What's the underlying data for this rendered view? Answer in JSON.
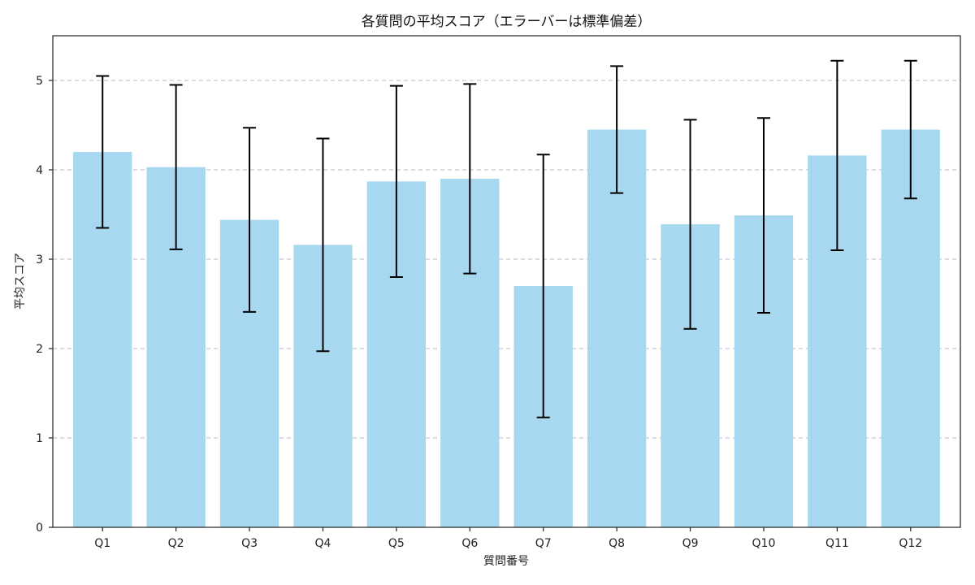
{
  "chart_data": {
    "type": "bar",
    "title": "各質問の平均スコア（エラーバーは標準偏差）",
    "xlabel": "質問番号",
    "ylabel": "平均スコア",
    "categories": [
      "Q1",
      "Q2",
      "Q3",
      "Q4",
      "Q5",
      "Q6",
      "Q7",
      "Q8",
      "Q9",
      "Q10",
      "Q11",
      "Q12"
    ],
    "values": [
      4.2,
      4.03,
      3.44,
      3.16,
      3.87,
      3.9,
      2.7,
      4.45,
      3.39,
      3.49,
      4.16,
      4.45
    ],
    "std": [
      0.85,
      0.92,
      1.03,
      1.19,
      1.07,
      1.06,
      1.47,
      0.71,
      1.17,
      1.09,
      1.06,
      0.77
    ],
    "ylim": [
      0,
      5.5
    ],
    "yticks": [
      0,
      1,
      2,
      3,
      4,
      5
    ],
    "grid": true,
    "grid_axis": "y",
    "bar_color": "#a8d8f0",
    "error_color": "#000000"
  }
}
